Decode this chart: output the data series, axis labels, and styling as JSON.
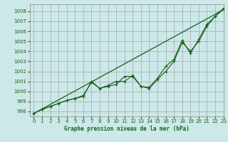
{
  "title": "Graphe pression niveau de la mer (hPa)",
  "bg_color": "#cce8e8",
  "grid_color": "#999999",
  "line_color": "#1a5e1a",
  "xlim": [
    -0.5,
    23
  ],
  "ylim": [
    997.5,
    1008.7
  ],
  "yticks": [
    998,
    999,
    1000,
    1001,
    1002,
    1003,
    1004,
    1005,
    1006,
    1007,
    1008
  ],
  "xticks": [
    0,
    1,
    2,
    3,
    4,
    5,
    6,
    7,
    8,
    9,
    10,
    11,
    12,
    13,
    14,
    15,
    16,
    17,
    18,
    19,
    20,
    21,
    22,
    23
  ],
  "series_smooth": [
    997.8,
    998.25,
    998.7,
    999.15,
    999.6,
    1000.05,
    1000.5,
    1000.95,
    1001.4,
    1001.85,
    1002.3,
    1002.75,
    1003.2,
    1003.65,
    1004.1,
    1004.55,
    1005.0,
    1005.45,
    1005.9,
    1006.35,
    1006.8,
    1007.25,
    1007.7,
    1008.2
  ],
  "series1": [
    997.8,
    998.2,
    998.5,
    998.8,
    999.1,
    999.3,
    999.6,
    1000.9,
    1000.3,
    1000.5,
    1000.7,
    1001.5,
    1001.5,
    1000.5,
    1000.3,
    1001.2,
    1002.0,
    1003.0,
    1004.9,
    1004.0,
    1005.0,
    1006.5,
    1007.5,
    1008.2
  ],
  "series2": [
    997.8,
    998.2,
    998.5,
    998.8,
    999.1,
    999.3,
    999.5,
    1001.0,
    1000.3,
    1000.6,
    1001.0,
    1001.0,
    1001.6,
    1000.5,
    1000.4,
    1001.3,
    1002.5,
    1003.2,
    1005.1,
    1003.8,
    1005.2,
    1006.7,
    1007.5,
    1008.3
  ]
}
